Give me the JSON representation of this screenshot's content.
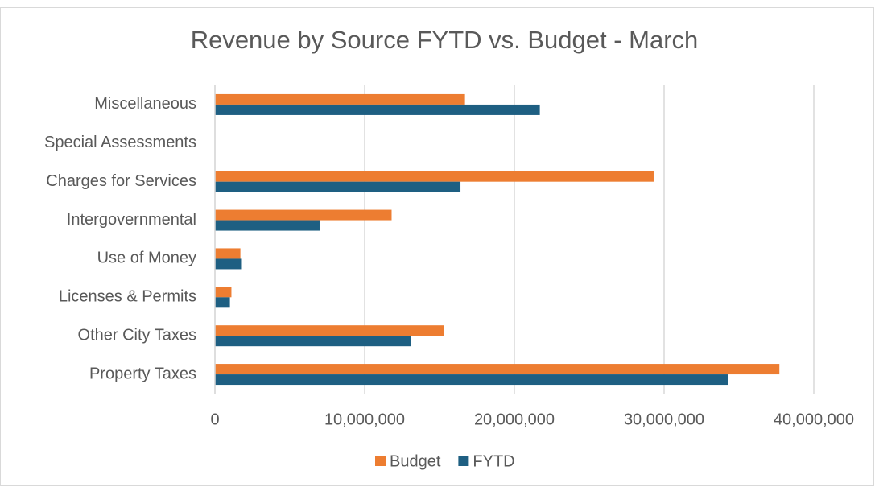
{
  "chart_data": {
    "type": "bar",
    "orientation": "horizontal",
    "title": "Revenue by Source FYTD vs. Budget - March",
    "categories": [
      "Miscellaneous",
      "Special Assessments",
      "Charges for Services",
      "Intergovernmental",
      "Use of Money",
      "Licenses & Permits",
      "Other City Taxes",
      "Property Taxes"
    ],
    "series": [
      {
        "name": "Budget",
        "color": "#ed7d31",
        "values": [
          16700000,
          0,
          29300000,
          11800000,
          1700000,
          1100000,
          15300000,
          37700000
        ]
      },
      {
        "name": "FYTD",
        "color": "#1e5f82",
        "values": [
          21700000,
          0,
          16400000,
          7000000,
          1800000,
          1000000,
          13100000,
          34300000
        ]
      }
    ],
    "xlim": [
      0,
      40000000
    ],
    "xticks": [
      0,
      {
        "value": 10000000,
        "label": "10,000,000"
      },
      {
        "value": 20000000,
        "label": "20,000,000"
      },
      {
        "value": 30000000,
        "label": "30,000,000"
      },
      {
        "value": 40000000,
        "label": "40,000,000"
      }
    ],
    "grid": true,
    "legend": "bottom"
  }
}
